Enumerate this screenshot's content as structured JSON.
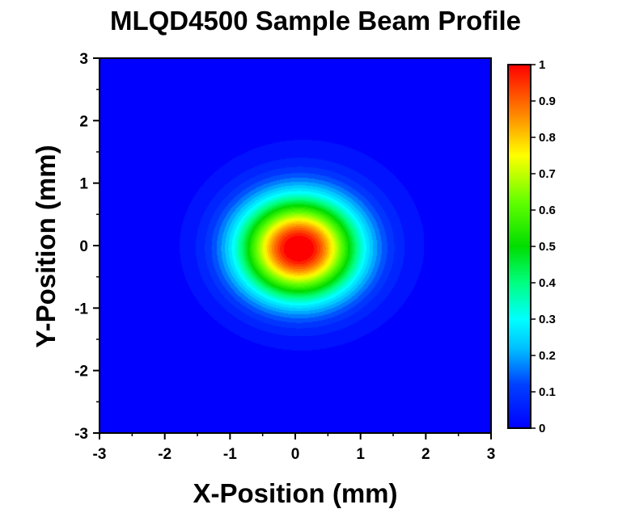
{
  "chart_data": {
    "type": "heatmap",
    "title": "MLQD4500 Sample Beam Profile",
    "xlabel": "X-Position (mm)",
    "ylabel": "Y-Position (mm)",
    "xlim": [
      -3,
      3
    ],
    "ylim": [
      -3,
      3
    ],
    "x_ticks": [
      "-3",
      "-2",
      "-1",
      "0",
      "1",
      "2",
      "3"
    ],
    "y_ticks": [
      "3",
      "2",
      "1",
      "0",
      "-1",
      "-2",
      "-3"
    ],
    "colorbar": {
      "range": [
        0,
        1
      ],
      "ticks": [
        "1",
        "0.9",
        "0.8",
        "0.7",
        "0.6",
        "0.5",
        "0.4",
        "0.3",
        "0.2",
        "0.1",
        "0"
      ],
      "colormap": "rainbow",
      "colors": [
        "#0000ff",
        "#0080ff",
        "#00ffff",
        "#00ff80",
        "#00c800",
        "#80ff00",
        "#ffff00",
        "#ff8000",
        "#ff0000"
      ]
    },
    "beam": {
      "peak_x": 0.05,
      "peak_y": -0.05,
      "peak_value": 1.0,
      "sigma_x": 0.62,
      "sigma_y": 0.55,
      "halo_center_x": 0.2,
      "halo_center_y": 0.1,
      "halo_sigma_x": 1.25,
      "halo_sigma_y": 1.15,
      "halo_level": 0.07,
      "background": 0.0
    },
    "grid": false,
    "legend": "colorbar-right"
  }
}
